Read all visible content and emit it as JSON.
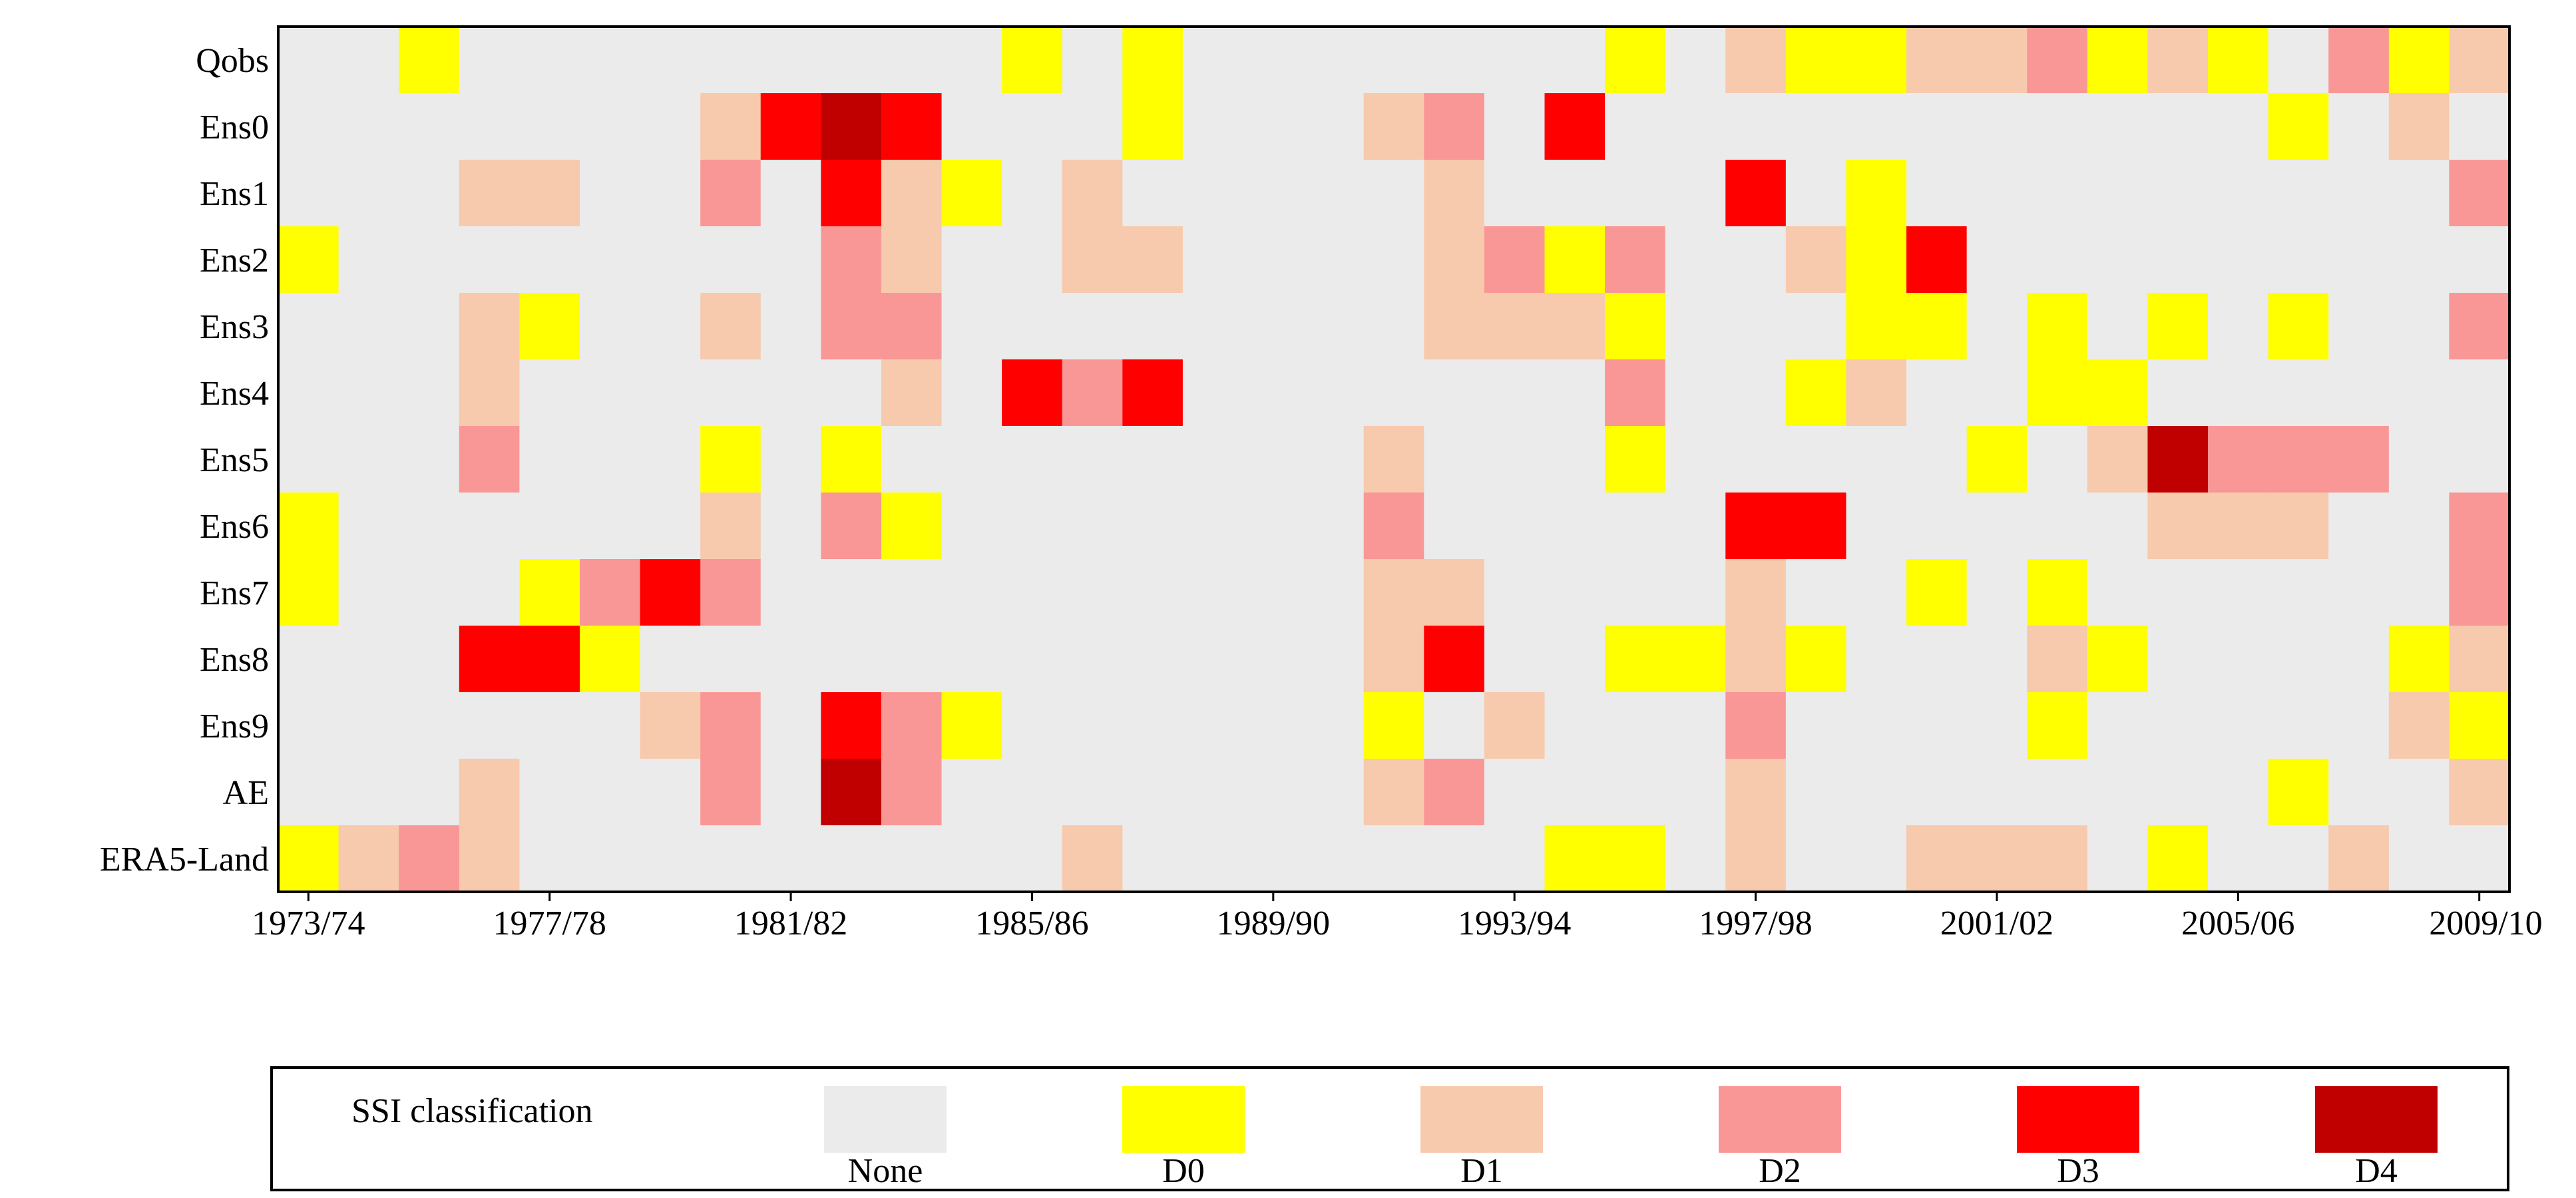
{
  "chart_data": {
    "type": "heatmap",
    "title": "",
    "xlabel": "",
    "ylabel": "",
    "rows": [
      "Qobs",
      "Ens0",
      "Ens1",
      "Ens2",
      "Ens3",
      "Ens4",
      "Ens5",
      "Ens6",
      "Ens7",
      "Ens8",
      "Ens9",
      "AE",
      "ERA5-Land"
    ],
    "columns": [
      "1973/74",
      "1974/75",
      "1975/76",
      "1976/77",
      "1977/78",
      "1978/79",
      "1979/80",
      "1980/81",
      "1981/82",
      "1982/83",
      "1983/84",
      "1984/85",
      "1985/86",
      "1986/87",
      "1987/88",
      "1988/89",
      "1989/90",
      "1990/91",
      "1991/92",
      "1992/93",
      "1993/94",
      "1994/95",
      "1995/96",
      "1996/97",
      "1997/98",
      "1998/99",
      "1999/00",
      "2000/01",
      "2001/02",
      "2002/03",
      "2003/04",
      "2004/05",
      "2005/06",
      "2006/07",
      "2007/08",
      "2008/09",
      "2009/10"
    ],
    "x_tick_labels": [
      "1973/74",
      "1977/78",
      "1981/82",
      "1985/86",
      "1989/90",
      "1993/94",
      "1997/98",
      "2001/02",
      "2005/06",
      "2009/10"
    ],
    "categories": [
      "None",
      "D0",
      "D1",
      "D2",
      "D3",
      "D4"
    ],
    "colors": {
      "None": "#ebebeb",
      "D0": "#ffff00",
      "D1": "#f7c9ad",
      "D2": "#f99796",
      "D3": "#ff0000",
      "D4": "#c00000"
    },
    "values": [
      [
        0,
        0,
        1,
        0,
        0,
        0,
        0,
        0,
        0,
        0,
        0,
        0,
        1,
        0,
        1,
        0,
        0,
        0,
        0,
        0,
        0,
        0,
        1,
        0,
        2,
        1,
        1,
        2,
        2,
        3,
        1,
        2,
        1,
        0,
        3,
        1,
        2
      ],
      [
        0,
        0,
        0,
        0,
        0,
        0,
        0,
        2,
        4,
        5,
        4,
        0,
        0,
        0,
        1,
        0,
        0,
        0,
        2,
        3,
        0,
        4,
        0,
        0,
        0,
        0,
        0,
        0,
        0,
        0,
        0,
        0,
        0,
        1,
        0,
        2,
        0
      ],
      [
        0,
        0,
        0,
        2,
        2,
        0,
        0,
        3,
        0,
        4,
        2,
        1,
        0,
        2,
        0,
        0,
        0,
        0,
        0,
        2,
        0,
        0,
        0,
        0,
        4,
        0,
        1,
        0,
        0,
        0,
        0,
        0,
        0,
        0,
        0,
        0,
        3
      ],
      [
        1,
        0,
        0,
        0,
        0,
        0,
        0,
        0,
        0,
        3,
        2,
        0,
        0,
        2,
        2,
        0,
        0,
        0,
        0,
        2,
        3,
        1,
        3,
        0,
        0,
        2,
        1,
        4,
        0,
        0,
        0,
        0,
        0,
        0,
        0,
        0,
        0
      ],
      [
        0,
        0,
        0,
        2,
        1,
        0,
        0,
        2,
        0,
        3,
        3,
        0,
        0,
        0,
        0,
        0,
        0,
        0,
        0,
        2,
        2,
        2,
        1,
        0,
        0,
        0,
        1,
        1,
        0,
        1,
        0,
        1,
        0,
        1,
        0,
        0,
        3
      ],
      [
        0,
        0,
        0,
        2,
        0,
        0,
        0,
        0,
        0,
        0,
        2,
        0,
        4,
        3,
        4,
        0,
        0,
        0,
        0,
        0,
        0,
        0,
        3,
        0,
        0,
        1,
        2,
        0,
        0,
        1,
        1,
        0,
        0,
        0,
        0,
        0,
        0
      ],
      [
        0,
        0,
        0,
        3,
        0,
        0,
        0,
        1,
        0,
        1,
        0,
        0,
        0,
        0,
        0,
        0,
        0,
        0,
        2,
        0,
        0,
        0,
        1,
        0,
        0,
        0,
        0,
        0,
        1,
        0,
        2,
        5,
        3,
        3,
        3,
        0,
        0
      ],
      [
        1,
        0,
        0,
        0,
        0,
        0,
        0,
        2,
        0,
        3,
        1,
        0,
        0,
        0,
        0,
        0,
        0,
        0,
        3,
        0,
        0,
        0,
        0,
        0,
        4,
        4,
        0,
        0,
        0,
        0,
        0,
        2,
        2,
        2,
        0,
        0,
        3
      ],
      [
        1,
        0,
        0,
        0,
        1,
        3,
        4,
        3,
        0,
        0,
        0,
        0,
        0,
        0,
        0,
        0,
        0,
        0,
        2,
        2,
        0,
        0,
        0,
        0,
        2,
        0,
        0,
        1,
        0,
        1,
        0,
        0,
        0,
        0,
        0,
        0,
        3
      ],
      [
        0,
        0,
        0,
        4,
        4,
        1,
        0,
        0,
        0,
        0,
        0,
        0,
        0,
        0,
        0,
        0,
        0,
        0,
        2,
        4,
        0,
        0,
        1,
        1,
        2,
        1,
        0,
        0,
        0,
        2,
        1,
        0,
        0,
        0,
        0,
        1,
        2
      ],
      [
        0,
        0,
        0,
        0,
        0,
        0,
        2,
        3,
        0,
        4,
        3,
        1,
        0,
        0,
        0,
        0,
        0,
        0,
        1,
        0,
        2,
        0,
        0,
        0,
        3,
        0,
        0,
        0,
        0,
        1,
        0,
        0,
        0,
        0,
        0,
        2,
        1
      ],
      [
        0,
        0,
        0,
        2,
        0,
        0,
        0,
        3,
        0,
        5,
        3,
        0,
        0,
        0,
        0,
        0,
        0,
        0,
        2,
        3,
        0,
        0,
        0,
        0,
        2,
        0,
        0,
        0,
        0,
        0,
        0,
        0,
        0,
        1,
        0,
        0,
        2
      ],
      [
        1,
        2,
        3,
        2,
        0,
        0,
        0,
        0,
        0,
        0,
        0,
        0,
        0,
        2,
        0,
        0,
        0,
        0,
        0,
        0,
        0,
        1,
        1,
        0,
        2,
        0,
        0,
        2,
        2,
        2,
        0,
        1,
        0,
        0,
        2,
        0,
        0
      ]
    ],
    "legend": {
      "title": "SSI classification",
      "placement": "bottom",
      "entries": [
        "None",
        "D0",
        "D1",
        "D2",
        "D3",
        "D4"
      ]
    },
    "grid": false
  }
}
